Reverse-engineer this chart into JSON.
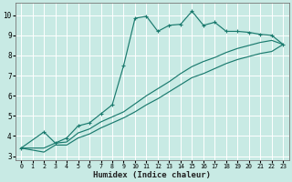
{
  "title": "",
  "xlabel": "Humidex (Indice chaleur)",
  "ylabel": "",
  "xlim": [
    -0.5,
    23.5
  ],
  "ylim": [
    2.8,
    10.6
  ],
  "xticks": [
    0,
    1,
    2,
    3,
    4,
    5,
    6,
    7,
    8,
    9,
    10,
    11,
    12,
    13,
    14,
    15,
    16,
    17,
    18,
    19,
    20,
    21,
    22,
    23
  ],
  "yticks": [
    3,
    4,
    5,
    6,
    7,
    8,
    9,
    10
  ],
  "bg_color": "#c8eae4",
  "grid_color": "#ffffff",
  "line_color": "#1a7a6e",
  "line1_x": [
    0,
    2,
    3,
    4,
    5,
    6,
    7,
    8,
    9,
    10,
    11,
    12,
    13,
    14,
    15,
    16,
    17,
    18,
    19,
    20,
    21,
    22,
    23
  ],
  "line1_y": [
    3.4,
    4.2,
    3.65,
    3.9,
    4.5,
    4.65,
    5.1,
    5.55,
    7.5,
    9.85,
    9.95,
    9.2,
    9.5,
    9.55,
    10.2,
    9.5,
    9.65,
    9.2,
    9.2,
    9.15,
    9.05,
    9.0,
    8.55
  ],
  "line2_x": [
    0,
    2,
    3,
    4,
    5,
    6,
    7,
    8,
    9,
    10,
    11,
    12,
    13,
    14,
    15,
    16,
    17,
    18,
    19,
    20,
    21,
    22,
    23
  ],
  "line2_y": [
    3.4,
    3.4,
    3.65,
    3.7,
    4.15,
    4.35,
    4.7,
    4.95,
    5.2,
    5.6,
    6.0,
    6.35,
    6.7,
    7.1,
    7.45,
    7.7,
    7.9,
    8.15,
    8.35,
    8.5,
    8.65,
    8.75,
    8.55
  ],
  "line3_x": [
    0,
    2,
    3,
    4,
    5,
    6,
    7,
    8,
    9,
    10,
    11,
    12,
    13,
    14,
    15,
    16,
    17,
    18,
    19,
    20,
    21,
    22,
    23
  ],
  "line3_y": [
    3.4,
    3.2,
    3.55,
    3.55,
    3.9,
    4.1,
    4.4,
    4.65,
    4.9,
    5.2,
    5.55,
    5.85,
    6.2,
    6.55,
    6.9,
    7.1,
    7.35,
    7.6,
    7.8,
    7.95,
    8.1,
    8.2,
    8.55
  ]
}
